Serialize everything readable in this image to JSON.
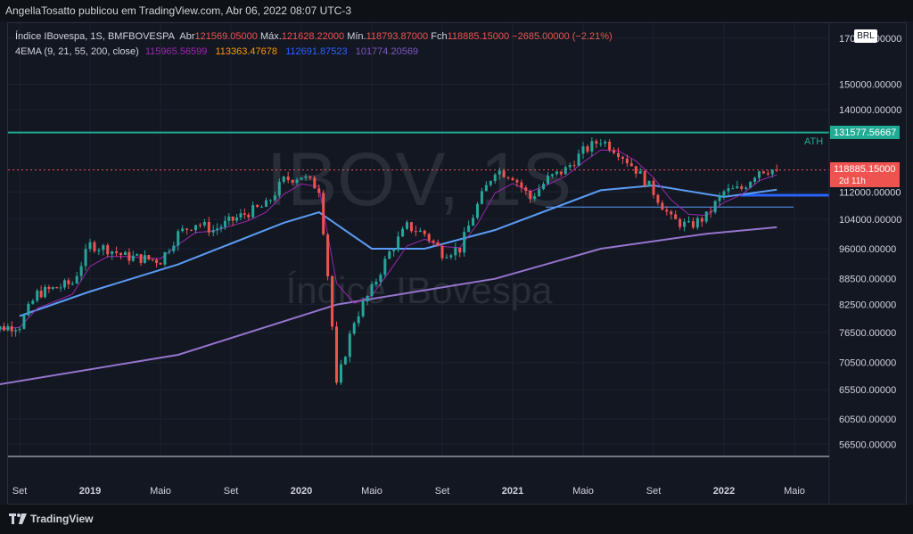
{
  "header": {
    "publisher_line": "AngellaTosatto publicou em TradingView.com, Abr 06, 2022 08:07 UTC-3"
  },
  "legend": {
    "symbol": "Índice IBovespa, 1S, BMFBOVESPA",
    "open_label": "Abr",
    "open_value": "121569.05000",
    "high_label": "Máx.",
    "high_value": "121628.22000",
    "low_label": "Mín.",
    "low_value": "118793.87000",
    "close_label": "Fch",
    "close_value": "118885.15000",
    "change": "−2685.00000 (−2.21%)",
    "ema_title": "4EMA (9, 21, 55, 200, close)",
    "ema9": "115965.56599",
    "ema21": "113363.47678",
    "ema55": "112691.87523",
    "ema200": "101774.20569"
  },
  "currency": "BRL",
  "watermark": {
    "ticker": "IBOV, 1S",
    "name": "Índice IBovespa"
  },
  "price_labels": {
    "ath_name": "ATH",
    "ath_value": "131577.56667",
    "last_value": "118885.15000",
    "countdown": "2d 11h"
  },
  "footer": {
    "brand": "TradingView"
  },
  "colors": {
    "up": "#26a69a",
    "down": "#ef5350",
    "background": "#131722",
    "ema9": "#9c27b0",
    "ema21": "#ff9800",
    "ema55": "#5b9cf6",
    "ema200": "#9575cd",
    "ath": "#22ab94",
    "support": "#2962ff"
  },
  "chart_data": {
    "type": "candlestick",
    "interval": "1S",
    "x_axis_ticks": [
      "Set",
      "2019",
      "Maio",
      "Set",
      "2020",
      "Maio",
      "Set",
      "2021",
      "Maio",
      "Set",
      "2022",
      "Maio"
    ],
    "y_axis_ticks": [
      "170000.00000",
      "150000.00000",
      "140000.00000",
      "131577.56667",
      "118885.15000",
      "112000.00000",
      "104000.00000",
      "96000.00000",
      "88500.00000",
      "82500.00000",
      "76500.00000",
      "70500.00000",
      "65500.00000",
      "60500.00000",
      "56500.00000"
    ],
    "ylim": [
      53000,
      175000
    ],
    "y_scale": "log",
    "horizontal_lines": [
      {
        "name": "ATH",
        "value": 131577.57,
        "style": "solid"
      },
      {
        "name": "",
        "value": 107500,
        "style": "solid"
      },
      {
        "name": "",
        "value": 111000,
        "style": "thick"
      }
    ],
    "weekly_close_approx": [
      {
        "date": "2018-07",
        "close": 77000
      },
      {
        "date": "2018-09",
        "close": 78000
      },
      {
        "date": "2018-10",
        "close": 85000
      },
      {
        "date": "2018-12",
        "close": 87500
      },
      {
        "date": "2019-01",
        "close": 97000
      },
      {
        "date": "2019-02",
        "close": 96000
      },
      {
        "date": "2019-03",
        "close": 94000
      },
      {
        "date": "2019-05",
        "close": 93000
      },
      {
        "date": "2019-06",
        "close": 100000
      },
      {
        "date": "2019-07",
        "close": 103000
      },
      {
        "date": "2019-08",
        "close": 101000
      },
      {
        "date": "2019-10",
        "close": 106000
      },
      {
        "date": "2019-11",
        "close": 108000
      },
      {
        "date": "2019-12",
        "close": 115600
      },
      {
        "date": "2020-01",
        "close": 117000
      },
      {
        "date": "2020-02",
        "close": 113000
      },
      {
        "date": "2020-03",
        "close": 66000
      },
      {
        "date": "2020-04",
        "close": 79000
      },
      {
        "date": "2020-05",
        "close": 86000
      },
      {
        "date": "2020-06",
        "close": 95000
      },
      {
        "date": "2020-07",
        "close": 102000
      },
      {
        "date": "2020-08",
        "close": 100000
      },
      {
        "date": "2020-09",
        "close": 95000
      },
      {
        "date": "2020-10",
        "close": 96000
      },
      {
        "date": "2020-11",
        "close": 108000
      },
      {
        "date": "2020-12",
        "close": 119000
      },
      {
        "date": "2021-01",
        "close": 117000
      },
      {
        "date": "2021-02",
        "close": 110000
      },
      {
        "date": "2021-03",
        "close": 116000
      },
      {
        "date": "2021-04",
        "close": 119000
      },
      {
        "date": "2021-05",
        "close": 125000
      },
      {
        "date": "2021-06",
        "close": 129000
      },
      {
        "date": "2021-07",
        "close": 125000
      },
      {
        "date": "2021-08",
        "close": 119000
      },
      {
        "date": "2021-09",
        "close": 112000
      },
      {
        "date": "2021-10",
        "close": 104000
      },
      {
        "date": "2021-11",
        "close": 102000
      },
      {
        "date": "2021-12",
        "close": 104800
      },
      {
        "date": "2022-01",
        "close": 112000
      },
      {
        "date": "2022-02",
        "close": 113000
      },
      {
        "date": "2022-03",
        "close": 119000
      },
      {
        "date": "2022-04",
        "close": 118885
      }
    ],
    "ema55_approx": [
      {
        "date": "2018-09",
        "value": 80000
      },
      {
        "date": "2019-01",
        "value": 85500
      },
      {
        "date": "2019-06",
        "value": 92000
      },
      {
        "date": "2019-12",
        "value": 103000
      },
      {
        "date": "2020-02",
        "value": 106000
      },
      {
        "date": "2020-05",
        "value": 96000
      },
      {
        "date": "2020-08",
        "value": 96000
      },
      {
        "date": "2020-12",
        "value": 101000
      },
      {
        "date": "2021-06",
        "value": 112500
      },
      {
        "date": "2021-09",
        "value": 114000
      },
      {
        "date": "2022-01",
        "value": 110500
      },
      {
        "date": "2022-04",
        "value": 112692
      }
    ],
    "ema200_approx": [
      {
        "date": "2018-06",
        "value": 65500
      },
      {
        "date": "2019-06",
        "value": 72000
      },
      {
        "date": "2020-03",
        "value": 82500
      },
      {
        "date": "2020-12",
        "value": 88500
      },
      {
        "date": "2021-06",
        "value": 96000
      },
      {
        "date": "2021-12",
        "value": 100000
      },
      {
        "date": "2022-04",
        "value": 101774
      }
    ]
  }
}
